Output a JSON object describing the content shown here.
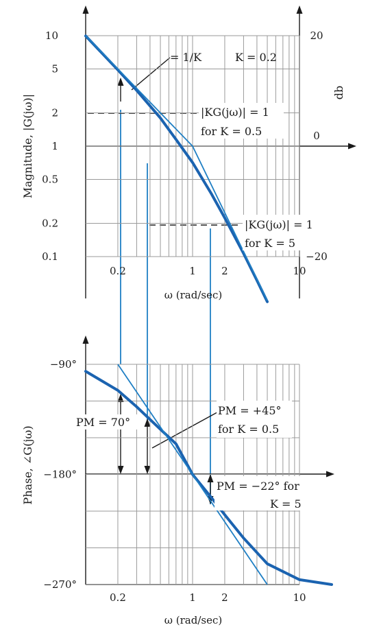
{
  "chart_data": [
    {
      "type": "line",
      "xscale": "log",
      "yscale": "log",
      "xlim": [
        0.1,
        10
      ],
      "ylim": [
        0.1,
        10
      ],
      "x_ticks": [
        "0.2",
        "1",
        "2",
        "10"
      ],
      "x_tick_values": [
        0.2,
        1,
        2,
        10
      ],
      "y_ticks": [
        "10",
        "5",
        "2",
        "1",
        "0.5",
        "0.2",
        "0.1"
      ],
      "y_tick_values": [
        10,
        5,
        2,
        1,
        0.5,
        0.2,
        0.1
      ],
      "y2_ticks": [
        "20",
        "0",
        "−20"
      ],
      "y2_tick_values": [
        10,
        1,
        0.1
      ],
      "y2label": "db",
      "xlabel": "ω (rad/sec)",
      "ylabel": "Magnitude, |G(jω)|",
      "series": [
        {
          "style": "thick",
          "x": [
            0.1,
            0.2,
            0.3,
            0.5,
            0.7,
            1,
            1.5,
            2,
            3,
            4,
            5
          ],
          "y": [
            9.95,
            4.9,
            3.2,
            1.8,
            1.15,
            0.71,
            0.37,
            0.224,
            0.107,
            0.061,
            0.039
          ]
        },
        {
          "style": "thin",
          "x": [
            0.1,
            1,
            5
          ],
          "y": [
            10,
            1,
            0.04
          ]
        }
      ],
      "annotations": [
        {
          "id": "inv_k",
          "text": "= 1/K"
        },
        {
          "id": "k_value",
          "text": "K = 0.2"
        },
        {
          "id": "kg_mag_1",
          "text": "|KG(jω)| = 1"
        },
        {
          "id": "for_k_05",
          "text": "for K = 0.5"
        },
        {
          "id": "kg_mag_2",
          "text": "|KG(jω)| = 1"
        },
        {
          "id": "for_k_5",
          "text": "for K = 5"
        }
      ],
      "grid": true
    },
    {
      "type": "line",
      "xscale": "log",
      "xlim": [
        0.1,
        10
      ],
      "ylim": [
        -270,
        -90
      ],
      "x_ticks": [
        "0.2",
        "1",
        "2",
        "10"
      ],
      "x_tick_values": [
        0.2,
        1,
        2,
        10
      ],
      "y_ticks": [
        "−90°",
        "−180°",
        "−270°"
      ],
      "y_tick_values": [
        -90,
        -180,
        -270
      ],
      "xlabel": "ω (rad/sec)",
      "ylabel": "Phase, ∠G(jω)",
      "series": [
        {
          "style": "thick",
          "x": [
            0.1,
            0.2,
            0.3,
            0.5,
            0.7,
            1,
            1.5,
            2,
            3,
            5,
            10,
            20
          ],
          "y": [
            -95.7,
            -111.3,
            -124.7,
            -143.1,
            -155,
            -180,
            -199,
            -213,
            -232,
            -253,
            -266,
            -270
          ]
        },
        {
          "style": "thin",
          "x": [
            0.2,
            1,
            5
          ],
          "y": [
            -90,
            -180,
            -270
          ]
        }
      ],
      "annotations": [
        {
          "id": "pm_70",
          "text": "PM = 70°"
        },
        {
          "id": "pm_45",
          "text": "PM = +45°"
        },
        {
          "id": "for_k_05",
          "text": "for K = 0.5"
        },
        {
          "id": "pm_neg22",
          "text": "PM = −22° for"
        },
        {
          "id": "k_5",
          "text": "K = 5"
        }
      ],
      "grid": true
    }
  ]
}
